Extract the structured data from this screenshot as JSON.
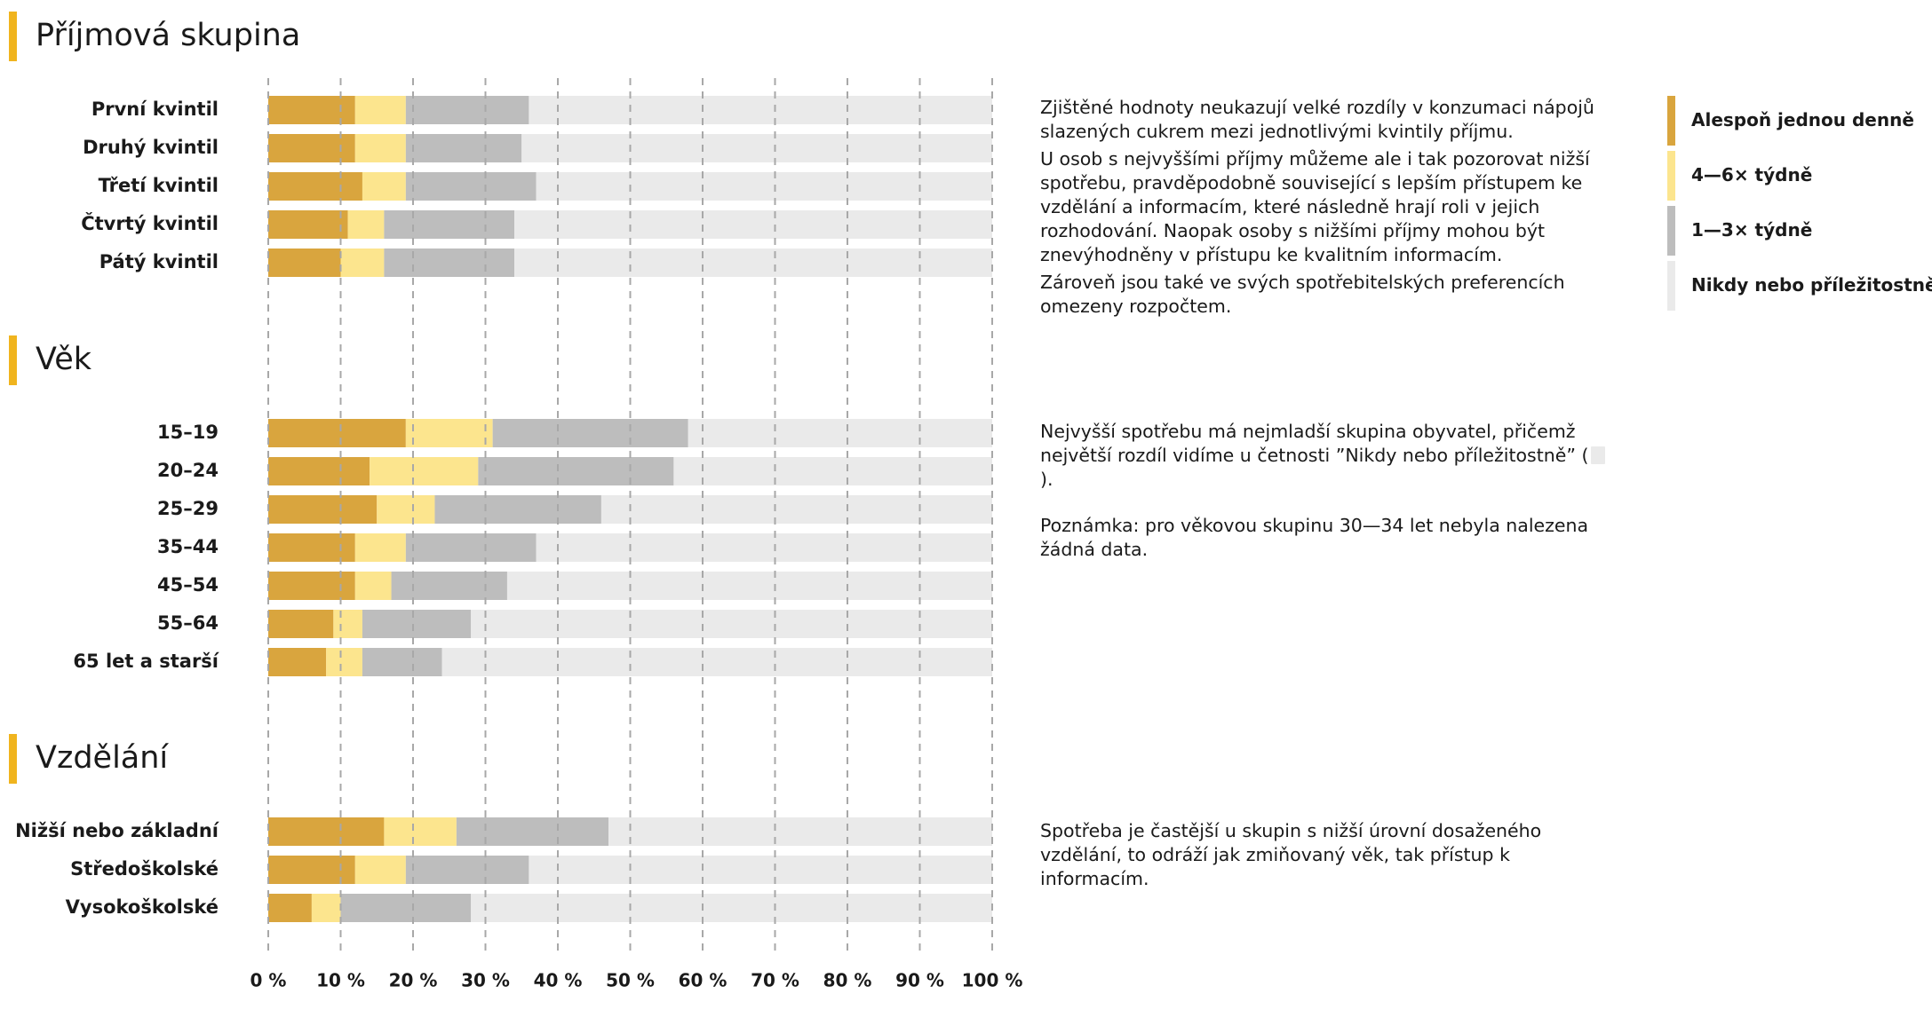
{
  "colors": {
    "accent": "#F0B41E",
    "daily": "#D9A53E",
    "weekly_4_6": "#FCE58E",
    "weekly_1_3": "#BDBDBD",
    "never": "#EAEAEA",
    "grid": "#A8A8A8"
  },
  "chart_data": {
    "type": "bar",
    "orientation": "horizontal",
    "stacked": true,
    "xlim": [
      0,
      100
    ],
    "x_ticks": [
      "0 %",
      "10 %",
      "20 %",
      "30 %",
      "40 %",
      "50 %",
      "60 %",
      "70 %",
      "80 %",
      "90 %",
      "100 %"
    ],
    "grid": "vertical dashed",
    "legend_position": "right",
    "series_names": [
      "Alespoň jednou denně",
      "4–6× týdně",
      "1–3× týdně",
      "Nikdy nebo příležitostně"
    ],
    "groups": [
      {
        "title": "Příjmová skupina",
        "categories": [
          "První kvintil",
          "Druhý kvintil",
          "Třetí kvintil",
          "Čtvrtý kvintil",
          "Pátý kvintil"
        ],
        "series": [
          {
            "name": "Alespoň jednou denně",
            "values": [
              12,
              12,
              13,
              11,
              10
            ]
          },
          {
            "name": "4–6× týdně",
            "values": [
              7,
              7,
              6,
              5,
              6
            ]
          },
          {
            "name": "1–3× týdně",
            "values": [
              17,
              16,
              18,
              18,
              18
            ]
          },
          {
            "name": "Nikdy nebo příležitostně",
            "values": [
              64,
              65,
              63,
              66,
              66
            ]
          }
        ]
      },
      {
        "title": "Věk",
        "categories": [
          "15–19",
          "20–24",
          "25–29",
          "35–44",
          "45–54",
          "55–64",
          "65 let a starší"
        ],
        "series": [
          {
            "name": "Alespoň jednou denně",
            "values": [
              19,
              14,
              15,
              12,
              12,
              9,
              8
            ]
          },
          {
            "name": "4–6× týdně",
            "values": [
              12,
              15,
              8,
              7,
              5,
              4,
              5
            ]
          },
          {
            "name": "1–3× týdně",
            "values": [
              27,
              27,
              23,
              18,
              16,
              15,
              11
            ]
          },
          {
            "name": "Nikdy nebo příležitostně",
            "values": [
              42,
              44,
              54,
              63,
              67,
              72,
              76
            ]
          }
        ]
      },
      {
        "title": "Vzdělání",
        "categories": [
          "Nižší nebo základní",
          "Středoškolské",
          "Vysokoškolské"
        ],
        "series": [
          {
            "name": "Alespoň jednou denně",
            "values": [
              16,
              12,
              6
            ]
          },
          {
            "name": "4–6× týdně",
            "values": [
              10,
              7,
              4
            ]
          },
          {
            "name": "1–3× týdně",
            "values": [
              21,
              17,
              18
            ]
          },
          {
            "name": "Nikdy nebo příležitostně",
            "values": [
              53,
              64,
              72
            ]
          }
        ]
      }
    ]
  },
  "notes": {
    "income": [
      "Zjištěné hodnoty neukazují velké rozdíly v konzumaci nápojů slazených cukrem mezi jednotlivými kvintily příjmu.",
      "U osob s nejvyššími příjmy můžeme ale i tak pozorovat nižší spotřebu, pravděpodobně související s lepším přístupem ke vzdělání a informacím, které následně hrají roli v jejich rozhodování. Naopak osoby s nižšími příjmy mohou být znevýhodněny v přístupu ke kvalitním informacím.",
      "Zároveň jsou také ve svých spotřebitelských preferencích omezeny rozpočtem."
    ],
    "age_1a": "Nejvyšší spotřebu má nejmladší skupina obyvatel, přičemž největší rozdíl vidíme u četnosti ”Nikdy nebo příležitostně” (",
    "age_1b": ").",
    "age_2": "Poznámka: pro věkovou skupinu 30—34 let nebyla nalezena žádná data.",
    "education": "Spotřeba je častější u skupin s nižší úrovní dosaženého vzdělání, to odráží jak zmiňovaný věk, tak přístup k informacím."
  },
  "legend": [
    {
      "label": "Alespoň jednou denně"
    },
    {
      "label": "4—6× týdně"
    },
    {
      "label": "1—3× týdně"
    },
    {
      "label": "Nikdy nebo příležitostně"
    }
  ]
}
